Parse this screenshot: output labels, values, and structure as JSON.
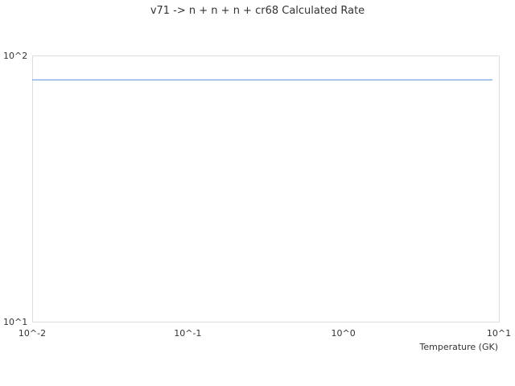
{
  "chart_data": {
    "type": "line",
    "title": "v71 -> n + n + n + cr68 Calculated Rate",
    "xlabel": "Temperature (GK)",
    "ylabel": "",
    "xscale": "log",
    "yscale": "log",
    "xlim": [
      0.01,
      10
    ],
    "ylim": [
      10,
      100
    ],
    "x_tick_labels": [
      "10^-2",
      "10^-1",
      "10^0",
      "10^1"
    ],
    "y_tick_labels": [
      "10^1",
      "10^2"
    ],
    "grid": false,
    "series": [
      {
        "color": "#6a9fdc",
        "x": [
          0.01,
          9.1
        ],
        "y": [
          81,
          81
        ]
      }
    ]
  }
}
